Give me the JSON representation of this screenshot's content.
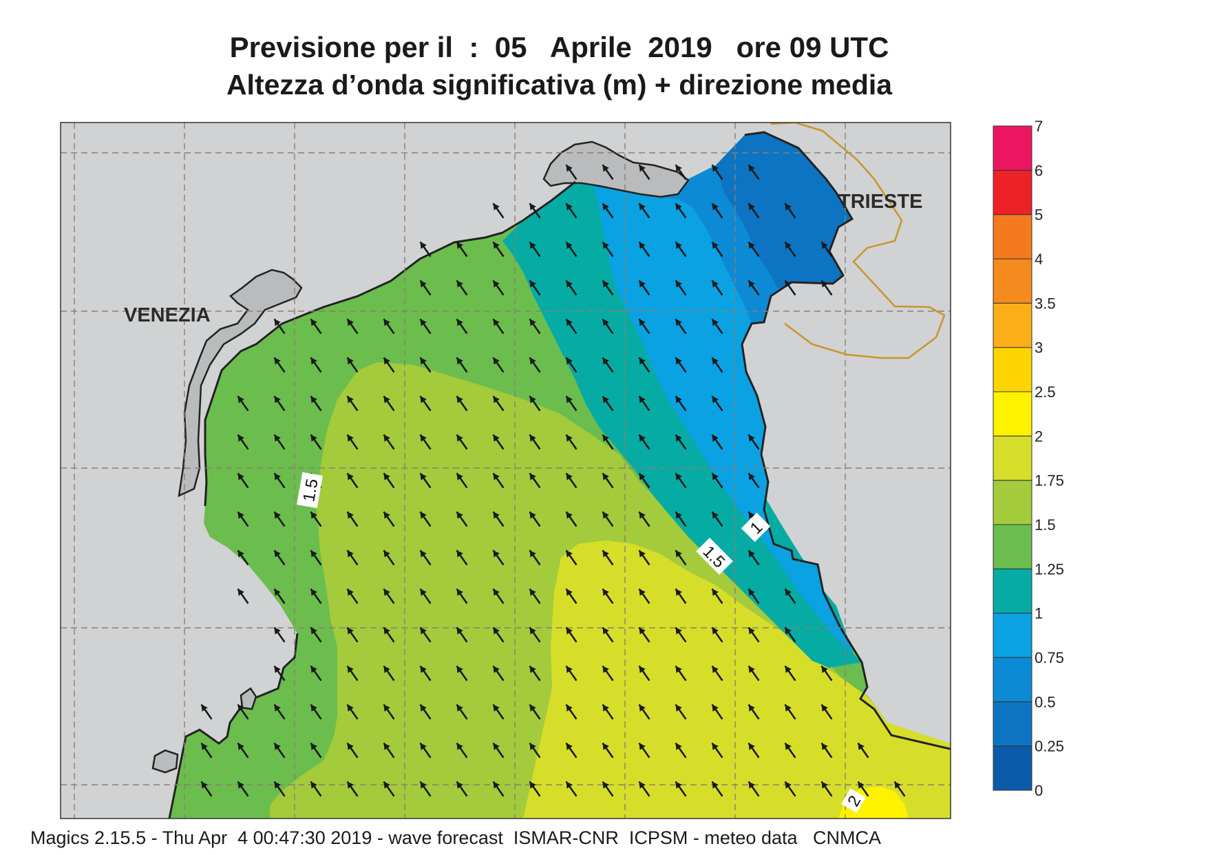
{
  "title": {
    "line1": "Previsione per il  :  05   Aprile  2019   ore 09 UTC",
    "line2": "Altezza d’onda significativa (m) + direzione media"
  },
  "cities": [
    {
      "name": "VENEZIA"
    },
    {
      "name": "TRIESTE"
    }
  ],
  "contour_labels": [
    "1.5",
    "1",
    "1.5",
    "2"
  ],
  "legend": {
    "levels": [
      "0",
      "0.25",
      "0.5",
      "0.75",
      "1",
      "1.25",
      "1.5",
      "1.75",
      "2",
      "2.5",
      "3",
      "3.5",
      "4",
      "5",
      "6",
      "7"
    ],
    "colors": [
      "#0a5aa9",
      "#0c74c2",
      "#0d8ad4",
      "#0aa2e2",
      "#06aca3",
      "#6bbd4e",
      "#a3cb3c",
      "#d6de2a",
      "#fef200",
      "#fdd400",
      "#fbae18",
      "#f58a1f",
      "#f4791f",
      "#ec2227",
      "#ec1560"
    ]
  },
  "wave_direction_deg_from_north": -35,
  "colors": {
    "land": "#d0d2d3",
    "lagoon": "#b9bbbd",
    "border": "#c9952a",
    "coast": "#222222",
    "grid": "#8c7f6f"
  },
  "footer": "Magics 2.15.5 - Thu Apr  4 00:47:30 2019 - wave forecast  ISMAR-CNR  ICPSM - meteo data   CNMCA"
}
